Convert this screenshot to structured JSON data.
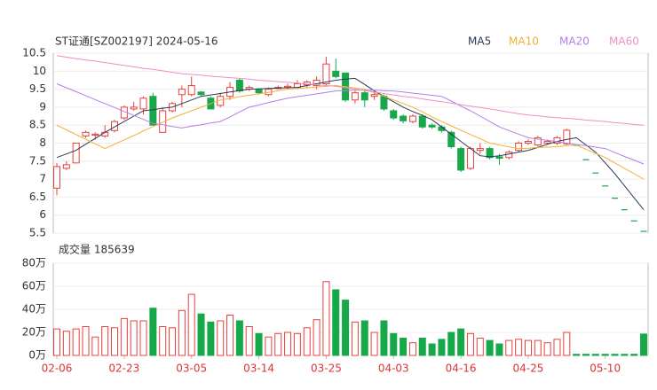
{
  "chart_data": {
    "type": "candlestick",
    "title": "ST证通[SZ002197] 2024-05-16",
    "volume_title": "成交量 185639",
    "categories": [
      "02-06",
      null,
      null,
      null,
      null,
      null,
      null,
      "02-23",
      null,
      null,
      null,
      null,
      null,
      null,
      "03-05",
      null,
      null,
      null,
      null,
      null,
      null,
      "03-14",
      null,
      null,
      null,
      null,
      null,
      null,
      "03-25",
      null,
      null,
      null,
      null,
      null,
      null,
      "04-03",
      null,
      null,
      null,
      null,
      null,
      null,
      "04-16",
      null,
      null,
      null,
      null,
      null,
      null,
      "04-25",
      null,
      null,
      null,
      null,
      null,
      null,
      null,
      "05-10",
      null,
      null,
      null,
      null
    ],
    "open": [
      6.75,
      7.3,
      7.45,
      8.2,
      8.22,
      8.2,
      8.35,
      8.7,
      8.95,
      8.95,
      9.3,
      8.3,
      8.9,
      9.35,
      9.35,
      9.42,
      9.25,
      9.05,
      9.3,
      9.75,
      9.5,
      9.5,
      9.35,
      9.52,
      9.55,
      9.55,
      9.62,
      9.6,
      9.65,
      10.0,
      9.95,
      9.2,
      9.4,
      9.3,
      9.3,
      8.9,
      8.75,
      8.6,
      8.75,
      8.5,
      8.45,
      8.3,
      7.85,
      7.3,
      7.8,
      7.85,
      7.62,
      7.6,
      7.8,
      8.0,
      7.95,
      8.0,
      8.0,
      7.98,
      7.94,
      7.54,
      7.17,
      6.81,
      6.47,
      6.15,
      5.84,
      5.55
    ],
    "high": [
      7.45,
      7.5,
      8.0,
      8.35,
      8.3,
      8.5,
      8.65,
      9.05,
      9.15,
      9.3,
      9.4,
      9.0,
      9.15,
      9.6,
      9.85,
      9.45,
      9.3,
      9.4,
      9.7,
      9.8,
      9.6,
      9.52,
      9.55,
      9.6,
      9.65,
      9.75,
      9.75,
      9.85,
      10.4,
      10.35,
      9.95,
      9.45,
      9.45,
      9.45,
      9.35,
      8.95,
      8.8,
      8.8,
      8.8,
      8.55,
      8.5,
      8.35,
      7.9,
      7.9,
      8.0,
      7.9,
      7.7,
      7.8,
      8.05,
      8.1,
      8.2,
      8.1,
      8.2,
      8.4,
      7.94,
      7.54,
      7.17,
      6.81,
      6.47,
      6.15,
      5.84,
      5.55
    ],
    "low": [
      6.55,
      7.25,
      7.45,
      8.15,
      8.1,
      8.15,
      8.3,
      8.65,
      8.9,
      8.8,
      8.5,
      8.3,
      8.85,
      9.0,
      9.3,
      9.3,
      8.95,
      9.0,
      9.2,
      9.4,
      9.45,
      9.35,
      9.3,
      9.5,
      9.5,
      9.5,
      9.55,
      9.5,
      9.6,
      9.8,
      9.15,
      9.1,
      9.0,
      9.2,
      8.9,
      8.65,
      8.55,
      8.55,
      8.4,
      8.4,
      8.3,
      7.85,
      7.2,
      7.25,
      7.7,
      7.55,
      7.4,
      7.55,
      7.75,
      7.95,
      7.9,
      7.95,
      7.95,
      7.95,
      7.94,
      7.54,
      7.17,
      6.81,
      6.47,
      6.15,
      5.84,
      5.55
    ],
    "close": [
      7.35,
      7.4,
      8.0,
      8.3,
      8.25,
      8.3,
      8.6,
      9.0,
      9.0,
      9.25,
      8.5,
      8.9,
      9.1,
      9.5,
      9.6,
      9.35,
      8.95,
      9.3,
      9.55,
      9.45,
      9.55,
      9.4,
      9.5,
      9.55,
      9.58,
      9.65,
      9.7,
      9.75,
      10.2,
      9.85,
      9.2,
      9.4,
      9.2,
      9.35,
      8.95,
      8.7,
      8.62,
      8.75,
      8.45,
      8.45,
      8.35,
      7.9,
      7.25,
      7.85,
      7.85,
      7.6,
      7.58,
      7.75,
      8.0,
      8.05,
      8.15,
      8.05,
      8.15,
      8.36,
      7.94,
      7.54,
      7.17,
      6.81,
      6.47,
      6.15,
      5.84,
      5.55
    ],
    "up_color": "#e8413c",
    "down_color": "#17a84a",
    "series": [
      {
        "name": "MA5",
        "color": "#2b3a55",
        "values": [
          7.6,
          7.7,
          7.8,
          7.97,
          8.13,
          8.3,
          8.45,
          8.6,
          8.75,
          8.9,
          8.93,
          8.97,
          9.0,
          9.1,
          9.2,
          9.3,
          9.34,
          9.38,
          9.42,
          9.46,
          9.5,
          9.51,
          9.52,
          9.53,
          9.54,
          9.55,
          9.6,
          9.65,
          9.7,
          9.75,
          9.78,
          9.8,
          9.63,
          9.45,
          9.3,
          9.15,
          9.0,
          8.88,
          8.77,
          8.65,
          8.45,
          8.25,
          8.05,
          7.85,
          7.65,
          7.62,
          7.65,
          7.7,
          7.75,
          7.8,
          7.88,
          7.97,
          8.05,
          8.1,
          8.15,
          7.95,
          7.75,
          7.45,
          7.15,
          6.82,
          6.48,
          6.15
        ]
      },
      {
        "name": "MA10",
        "color": "#f2b134",
        "values": [
          8.5,
          8.37,
          8.24,
          8.11,
          7.98,
          7.85,
          7.97,
          8.09,
          8.21,
          8.34,
          8.46,
          8.58,
          8.7,
          8.8,
          8.9,
          9.0,
          9.1,
          9.2,
          9.24,
          9.29,
          9.33,
          9.37,
          9.41,
          9.46,
          9.5,
          9.52,
          9.54,
          9.56,
          9.58,
          9.6,
          9.57,
          9.53,
          9.5,
          9.4,
          9.3,
          9.2,
          9.1,
          9.0,
          8.87,
          8.73,
          8.6,
          8.48,
          8.36,
          8.24,
          8.12,
          8.0,
          7.95,
          7.9,
          7.85,
          7.86,
          7.88,
          7.89,
          7.9,
          7.93,
          7.95,
          7.83,
          7.72,
          7.6,
          7.45,
          7.3,
          7.15,
          7.0
        ]
      },
      {
        "name": "MA20",
        "color": "#b57ee6",
        "values": [
          9.65,
          9.54,
          9.43,
          9.32,
          9.21,
          9.1,
          8.99,
          8.88,
          8.77,
          8.66,
          8.55,
          8.51,
          8.46,
          8.42,
          8.47,
          8.51,
          8.56,
          8.6,
          8.73,
          8.87,
          9.0,
          9.06,
          9.13,
          9.19,
          9.25,
          9.29,
          9.33,
          9.37,
          9.41,
          9.45,
          9.46,
          9.47,
          9.47,
          9.47,
          9.46,
          9.45,
          9.42,
          9.39,
          9.36,
          9.33,
          9.3,
          9.17,
          9.03,
          8.9,
          8.75,
          8.6,
          8.45,
          8.35,
          8.25,
          8.15,
          8.11,
          8.08,
          8.04,
          8.0,
          7.96,
          7.93,
          7.89,
          7.85,
          7.74,
          7.63,
          7.53,
          7.42
        ]
      },
      {
        "name": "MA60",
        "color": "#ec8fc6",
        "values": [
          10.43,
          10.39,
          10.35,
          10.31,
          10.28,
          10.24,
          10.2,
          10.16,
          10.12,
          10.08,
          10.05,
          10.01,
          9.97,
          9.93,
          9.91,
          9.89,
          9.86,
          9.84,
          9.82,
          9.8,
          9.78,
          9.75,
          9.73,
          9.71,
          9.69,
          9.67,
          9.64,
          9.62,
          9.6,
          9.58,
          9.54,
          9.5,
          9.46,
          9.42,
          9.38,
          9.34,
          9.3,
          9.27,
          9.23,
          9.19,
          9.15,
          9.11,
          9.07,
          9.03,
          8.99,
          8.95,
          8.91,
          8.86,
          8.82,
          8.78,
          8.76,
          8.73,
          8.71,
          8.69,
          8.67,
          8.64,
          8.62,
          8.6,
          8.57,
          8.55,
          8.52,
          8.5
        ]
      }
    ],
    "ylim": [
      5.5,
      10.5
    ],
    "yticks": [
      5.5,
      6,
      6.5,
      7,
      7.5,
      8,
      8.5,
      9,
      9.5,
      10,
      10.5
    ],
    "grid": true,
    "volume": [
      23,
      21,
      23,
      25,
      16,
      25,
      24,
      32,
      30,
      30,
      41,
      25,
      24,
      39,
      53,
      36,
      29,
      30,
      35,
      30,
      25,
      19,
      16,
      19,
      20,
      19,
      24,
      31,
      64,
      57,
      48,
      29,
      30,
      20,
      30,
      19,
      15,
      11,
      15,
      10,
      14,
      20,
      23,
      19,
      15,
      13,
      10,
      13,
      14,
      13,
      13,
      11,
      14,
      20,
      1,
      1,
      1,
      1,
      1,
      1,
      1,
      18.5639
    ],
    "volume_ylim": [
      0,
      80
    ],
    "volume_yticks": [
      {
        "value": 0,
        "label": "0万"
      },
      {
        "value": 20,
        "label": "20万"
      },
      {
        "value": 40,
        "label": "40万"
      },
      {
        "value": 60,
        "label": "60万"
      },
      {
        "value": 80,
        "label": "80万"
      }
    ]
  }
}
